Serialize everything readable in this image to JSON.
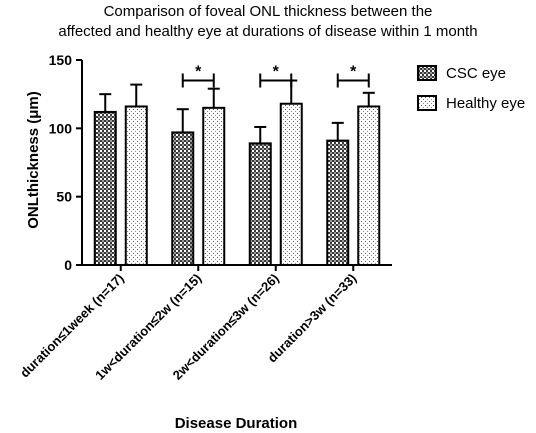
{
  "chart_data": {
    "type": "bar",
    "title": "Comparison of foveal ONL thickness between the affected and healthy eye at durations of disease within 1 month",
    "title_lines": [
      "Comparison of foveal ONL thickness between the",
      "affected and healthy eye at durations of disease within 1 month"
    ],
    "xlabel": "Disease Duration",
    "ylabel": "ONLthickness (μm)",
    "ylim": [
      0,
      150
    ],
    "yticks": [
      "0",
      "50",
      "100",
      "150"
    ],
    "categories": [
      "duration≤1week (n=17)",
      "1w<duration≤2w (n=15)",
      "2w<duration≤3w (n=26)",
      "duration>3w (n=33)"
    ],
    "series": [
      {
        "name": "CSC eye",
        "values": [
          112,
          97,
          89,
          91
        ],
        "error": [
          13,
          17,
          12,
          13
        ],
        "pattern": "checker"
      },
      {
        "name": "Healthy eye",
        "values": [
          116,
          115,
          118,
          116
        ],
        "error": [
          16,
          14,
          17,
          10
        ],
        "pattern": "dots"
      }
    ],
    "significance": [
      {
        "category_index": 1,
        "label": "*"
      },
      {
        "category_index": 2,
        "label": "*"
      },
      {
        "category_index": 3,
        "label": "*"
      }
    ],
    "legend_position": "right",
    "grid": false
  }
}
